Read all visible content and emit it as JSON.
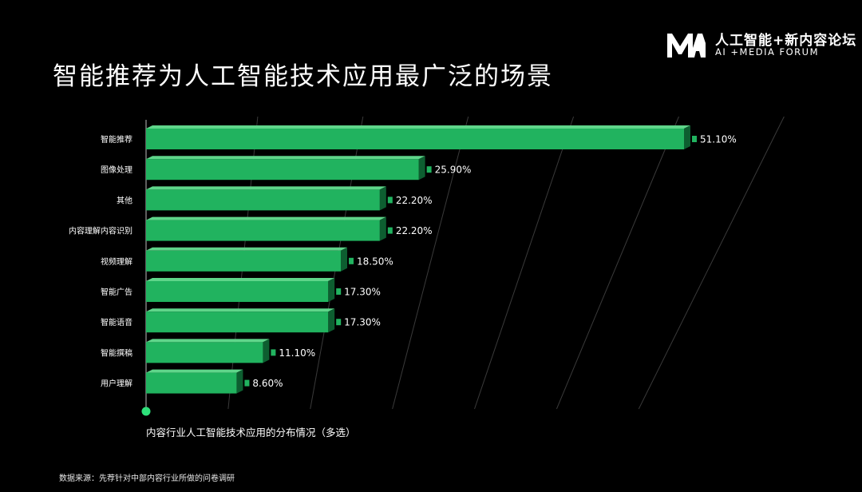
{
  "brand": {
    "name": "人工智能+新内容论坛",
    "subtitle": "AI +MEDIA FORUM"
  },
  "page_title": "智能推荐为人工智能技术应用最广泛的场景",
  "chart_caption": "内容行业人工智能技术应用的分布情况（多选）",
  "source_note": "数据来源：先荐针对中部内容行业所做的问卷调研",
  "colors": {
    "background": "#000000",
    "bar_front": "#21b35f",
    "bar_top": "#5fd58a",
    "bar_side": "#0d5e30",
    "grid": "#3a3a3a",
    "marker": "#2ee07a"
  },
  "chart_data": {
    "type": "bar",
    "orientation": "horizontal",
    "categories": [
      "智能推荐",
      "图像处理",
      "其他",
      "内容理解内容识别",
      "视频理解",
      "智能广告",
      "智能语音",
      "智能撰稿",
      "用户理解"
    ],
    "values": [
      51.1,
      25.9,
      22.2,
      22.2,
      18.5,
      17.3,
      17.3,
      11.1,
      8.6
    ],
    "value_labels": [
      "51.10%",
      "25.90%",
      "22.20%",
      "22.20%",
      "18.50%",
      "17.30%",
      "17.30%",
      "11.10%",
      "8.60%"
    ],
    "unit": "%",
    "title": "",
    "xlabel": "",
    "ylabel": "",
    "xlim": [
      0,
      60
    ],
    "grid": true,
    "legend": "none"
  }
}
